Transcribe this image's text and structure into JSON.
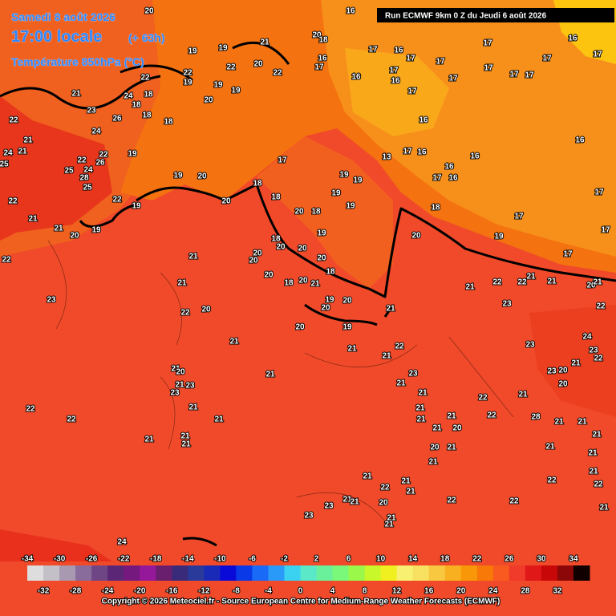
{
  "header": {
    "date": "Samedi 8 août 2026",
    "time": "17:00 locale",
    "lead": "(+ 63h)",
    "variable": "Température 850hPa (°C)",
    "run": "Run ECMWF 9km 0 Z du Jeudi 6 août 2026"
  },
  "colorbar": {
    "upper_ticks": [
      -34,
      -30,
      -26,
      -22,
      -18,
      -14,
      -10,
      -6,
      -2,
      2,
      6,
      10,
      14,
      18,
      22,
      26,
      30,
      34
    ],
    "lower_ticks": [
      -32,
      -28,
      -24,
      -20,
      -16,
      -12,
      -8,
      -4,
      0,
      4,
      8,
      12,
      16,
      20,
      24,
      28,
      32
    ],
    "range": [
      -34,
      36
    ],
    "colors": [
      "#dddddd",
      "#c4c0c8",
      "#a899b0",
      "#8a6c9c",
      "#6e4686",
      "#5c2676",
      "#76197e",
      "#96189a",
      "#6a1e6e",
      "#3a2a7a",
      "#2a3a9a",
      "#1a2ab8",
      "#0a0ad8",
      "#0a3ae8",
      "#1a6af8",
      "#2a9af8",
      "#3ad2f0",
      "#5ae8c8",
      "#6af09a",
      "#7af87a",
      "#9af84a",
      "#c8f82a",
      "#f0f020",
      "#f8f070",
      "#f8e060",
      "#f8c840",
      "#f8b020",
      "#f89808",
      "#f87808",
      "#f85a20",
      "#f03a2a",
      "#e01818",
      "#c80808",
      "#8c0808",
      "#100000"
    ]
  },
  "footer": "Copyright © 2026 Meteociel.fr - Source European Centre for Medium-Range Weather Forecasts (ECMWF)",
  "map_labels": [
    20,
    16,
    20,
    18,
    16,
    21,
    19,
    19,
    17,
    16,
    17,
    17,
    17,
    17,
    17,
    16,
    17,
    16,
    17,
    16,
    17,
    17,
    17,
    17,
    17,
    22,
    20,
    22,
    22,
    19,
    19,
    19,
    20,
    22,
    24,
    18,
    18,
    18,
    18,
    23,
    21,
    22,
    24,
    26,
    21,
    21,
    24,
    25,
    22,
    22,
    24,
    26,
    25,
    28,
    25,
    19,
    22,
    19,
    22,
    21,
    21,
    20,
    19,
    19,
    20,
    18,
    17,
    18,
    20,
    16,
    17,
    16,
    13,
    16,
    16,
    16,
    17,
    16,
    17,
    17,
    17,
    17,
    19,
    18,
    20,
    20,
    18,
    19,
    19,
    19,
    19,
    19,
    18,
    20,
    20,
    20,
    20,
    20,
    20,
    18,
    18,
    20,
    21,
    19,
    20,
    20,
    19,
    20,
    21,
    21,
    21,
    22,
    20,
    21,
    21,
    22,
    23,
    21,
    20,
    21,
    23,
    23,
    21,
    21,
    21,
    21,
    21,
    22,
    22,
    21,
    21,
    22,
    23,
    21,
    21,
    21,
    21,
    21,
    21,
    20,
    20,
    21,
    21,
    22,
    22,
    28,
    21,
    21,
    21,
    21,
    21,
    21,
    21,
    22,
    21,
    22,
    21,
    22,
    21,
    21,
    20,
    21,
    21,
    22,
    22,
    23,
    23,
    21,
    21,
    21,
    22,
    22,
    21,
    21,
    20,
    21,
    22,
    23,
    23,
    24,
    23,
    21,
    22,
    23,
    20,
    20,
    24
  ]
}
